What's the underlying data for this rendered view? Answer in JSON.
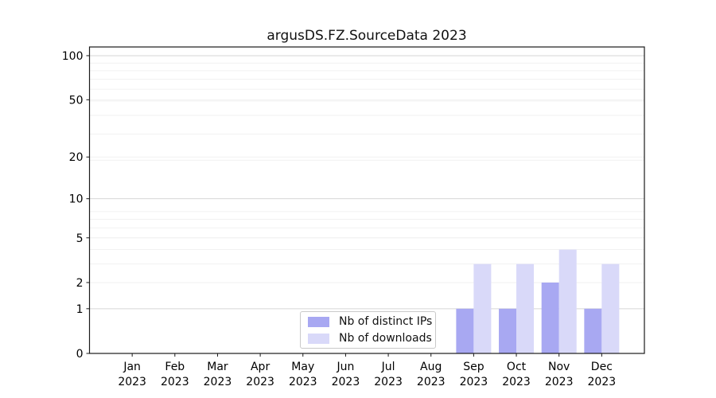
{
  "window": {
    "background": "#ffffff"
  },
  "chart_data": {
    "type": "bar",
    "title": "argusDS.FZ.SourceData 2023",
    "categories": [
      "Jan",
      "Feb",
      "Mar",
      "Apr",
      "May",
      "Jun",
      "Jul",
      "Aug",
      "Sep",
      "Oct",
      "Nov",
      "Dec"
    ],
    "category_year": "2023",
    "series": [
      {
        "name": "Nb of distinct IPs",
        "color": "#a8a8f2",
        "values": [
          0,
          0,
          0,
          0,
          0,
          0,
          0,
          0,
          1,
          1,
          2,
          1
        ]
      },
      {
        "name": "Nb of downloads",
        "color": "#d9d9f9",
        "values": [
          0,
          0,
          0,
          0,
          0,
          0,
          0,
          0,
          3,
          3,
          4,
          3
        ]
      }
    ],
    "yscale": "log1p",
    "yticks": [
      0,
      1,
      2,
      5,
      10,
      20,
      50,
      100
    ],
    "ylim": [
      0,
      114.6
    ],
    "grid": true,
    "xlabel": "",
    "ylabel": "",
    "legend_position": "lower center",
    "colors": {
      "axis": "#1a1a1a",
      "grid_major": "#d6d6d6",
      "grid_minor": "#f1f1f1",
      "legend_border": "#c9c9c9",
      "legend_background": "#ffffff",
      "text": "#000000"
    }
  }
}
